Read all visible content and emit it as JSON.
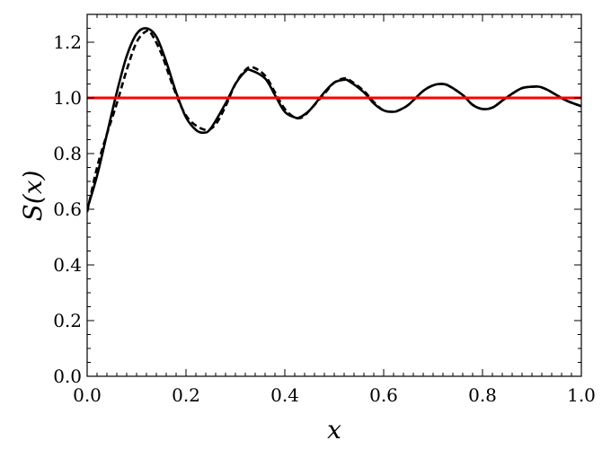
{
  "chart_data": {
    "type": "line",
    "title": "",
    "xlabel": "x",
    "ylabel": "S(x)",
    "xlim": [
      0.0,
      1.0
    ],
    "ylim": [
      0.0,
      1.3
    ],
    "grid": false,
    "legend": "none",
    "x_ticks": [
      "0.0",
      "0.2",
      "0.4",
      "0.6",
      "0.8",
      "1.0"
    ],
    "y_ticks": [
      "0.0",
      "0.2",
      "0.4",
      "0.6",
      "0.8",
      "1.0",
      "1.2"
    ],
    "series": [
      {
        "style": "solid",
        "color": "#000000",
        "x": [
          0.0,
          0.02,
          0.04,
          0.06,
          0.08,
          0.1,
          0.12,
          0.14,
          0.16,
          0.18,
          0.2,
          0.22,
          0.235,
          0.25,
          0.28,
          0.3,
          0.32,
          0.33,
          0.36,
          0.38,
          0.4,
          0.42,
          0.43,
          0.45,
          0.48,
          0.5,
          0.52,
          0.53,
          0.56,
          0.58,
          0.6,
          0.62,
          0.63,
          0.65,
          0.68,
          0.7,
          0.715,
          0.73,
          0.76,
          0.78,
          0.8,
          0.82,
          0.84,
          0.86,
          0.88,
          0.9,
          0.915,
          0.93,
          0.95,
          0.97,
          1.0
        ],
        "y": [
          0.6,
          0.72,
          0.87,
          1.02,
          1.15,
          1.23,
          1.25,
          1.22,
          1.13,
          1.02,
          0.93,
          0.885,
          0.875,
          0.89,
          0.98,
          1.05,
          1.095,
          1.1,
          1.07,
          1.01,
          0.95,
          0.93,
          0.93,
          0.955,
          1.02,
          1.055,
          1.065,
          1.06,
          1.02,
          0.98,
          0.955,
          0.95,
          0.955,
          0.975,
          1.025,
          1.045,
          1.05,
          1.045,
          1.01,
          0.975,
          0.96,
          0.965,
          0.99,
          1.015,
          1.035,
          1.04,
          1.04,
          1.03,
          1.01,
          0.99,
          0.97
        ]
      },
      {
        "style": "dashed",
        "color": "#000000",
        "x": [
          0.0,
          0.02,
          0.04,
          0.06,
          0.08,
          0.1,
          0.12,
          0.13,
          0.15,
          0.17,
          0.19,
          0.21,
          0.24,
          0.26,
          0.28,
          0.3,
          0.32,
          0.335,
          0.36,
          0.38,
          0.4,
          0.42,
          0.435,
          0.45,
          0.48,
          0.5,
          0.52,
          0.53,
          0.56,
          0.58,
          0.6,
          0.62,
          0.63,
          0.65,
          0.68,
          0.7,
          0.715,
          0.73,
          0.76,
          0.78,
          0.8,
          0.82,
          0.84,
          0.86,
          0.88,
          0.9,
          0.915,
          0.93,
          0.95,
          0.97,
          1.0
        ],
        "y": [
          0.59,
          0.75,
          0.87,
          0.98,
          1.1,
          1.2,
          1.24,
          1.23,
          1.16,
          1.06,
          0.97,
          0.915,
          0.885,
          0.905,
          0.97,
          1.05,
          1.1,
          1.11,
          1.08,
          1.02,
          0.96,
          0.93,
          0.93,
          0.955,
          1.015,
          1.055,
          1.07,
          1.065,
          1.025,
          0.985,
          0.955,
          0.95,
          0.955,
          0.975,
          1.025,
          1.045,
          1.05,
          1.045,
          1.01,
          0.975,
          0.96,
          0.965,
          0.99,
          1.015,
          1.035,
          1.04,
          1.04,
          1.03,
          1.01,
          0.99,
          0.97
        ]
      },
      {
        "style": "solid",
        "color": "#ff0000",
        "x": [
          0.0,
          1.0
        ],
        "y": [
          1.0,
          1.0
        ]
      }
    ]
  }
}
